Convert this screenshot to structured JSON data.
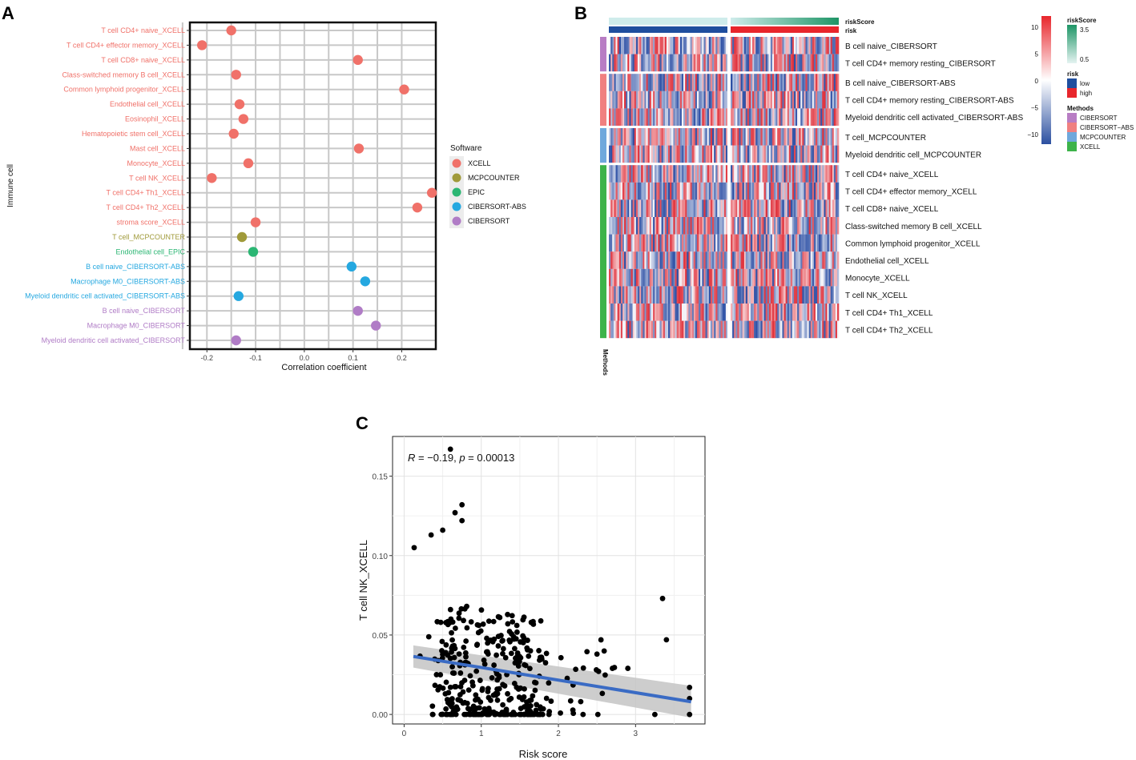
{
  "panels": {
    "a": "A",
    "b": "B",
    "c": "C"
  },
  "chart_data": [
    {
      "type": "scatter",
      "panel": "A",
      "title": "",
      "xlabel": "Correlation coefficient",
      "ylabel": "Immune cell",
      "xlim": [
        -0.235,
        0.27
      ],
      "xticks": [
        -0.2,
        -0.1,
        0.0,
        0.1,
        0.2
      ],
      "xtick_labels": [
        "-0.2",
        "-0.1",
        "0.0",
        "0.1",
        "0.2"
      ],
      "grid": true,
      "legend": {
        "title": "Software",
        "position": "right",
        "entries": [
          {
            "label": "XCELL",
            "color": "#F07169"
          },
          {
            "label": "MCPCOUNTER",
            "color": "#A09A3A"
          },
          {
            "label": "EPIC",
            "color": "#2BB673"
          },
          {
            "label": "CIBERSORT-ABS",
            "color": "#25A8E0"
          },
          {
            "label": "CIBERSORT",
            "color": "#B07CC6"
          }
        ]
      },
      "points": [
        {
          "cell": "T cell CD4+ naive_XCELL",
          "value": -0.15,
          "software": 0
        },
        {
          "cell": "T cell CD4+ effector memory_XCELL",
          "value": -0.21,
          "software": 0
        },
        {
          "cell": "T cell CD8+ naive_XCELL",
          "value": 0.11,
          "software": 0
        },
        {
          "cell": "Class-switched memory B cell_XCELL",
          "value": -0.14,
          "software": 0
        },
        {
          "cell": "Common lymphoid progenitor_XCELL",
          "value": 0.205,
          "software": 0
        },
        {
          "cell": "Endothelial cell_XCELL",
          "value": -0.133,
          "software": 0
        },
        {
          "cell": "Eosinophil_XCELL",
          "value": -0.125,
          "software": 0
        },
        {
          "cell": "Hematopoietic stem cell_XCELL",
          "value": -0.145,
          "software": 0
        },
        {
          "cell": "Mast cell_XCELL",
          "value": 0.112,
          "software": 0
        },
        {
          "cell": "Monocyte_XCELL",
          "value": -0.115,
          "software": 0
        },
        {
          "cell": "T cell NK_XCELL",
          "value": -0.19,
          "software": 0
        },
        {
          "cell": "T cell CD4+ Th1_XCELL",
          "value": 0.262,
          "software": 0
        },
        {
          "cell": "T cell CD4+ Th2_XCELL",
          "value": 0.232,
          "software": 0
        },
        {
          "cell": "stroma score_XCELL",
          "value": -0.1,
          "software": 0
        },
        {
          "cell": "T cell_MCPCOUNTER",
          "value": -0.128,
          "software": 1
        },
        {
          "cell": "Endothelial cell_EPIC",
          "value": -0.105,
          "software": 2
        },
        {
          "cell": "B cell naive_CIBERSORT-ABS",
          "value": 0.097,
          "software": 3
        },
        {
          "cell": "Macrophage M0_CIBERSORT-ABS",
          "value": 0.125,
          "software": 3
        },
        {
          "cell": "Myeloid dendritic cell activated_CIBERSORT-ABS",
          "value": -0.135,
          "software": 3
        },
        {
          "cell": "B cell naive_CIBERSORT",
          "value": 0.11,
          "software": 4
        },
        {
          "cell": "Macrophage M0_CIBERSORT",
          "value": 0.147,
          "software": 4
        },
        {
          "cell": "Myeloid dendritic cell activated_CIBERSORT",
          "value": -0.14,
          "software": 4
        }
      ]
    },
    {
      "type": "heatmap",
      "panel": "B",
      "top_annotations": [
        "riskScore",
        "risk"
      ],
      "side_annotation_label": "Methods",
      "rows": [
        {
          "label": "B cell naive_CIBERSORT",
          "method": 0
        },
        {
          "label": "T cell CD4+ memory resting_CIBERSORT",
          "method": 0
        },
        {
          "label": "B cell naive_CIBERSORT-ABS",
          "method": 1
        },
        {
          "label": "T cell CD4+ memory resting_CIBERSORT-ABS",
          "method": 1
        },
        {
          "label": "Myeloid dendritic cell activated_CIBERSORT-ABS",
          "method": 1
        },
        {
          "label": "T cell_MCPCOUNTER",
          "method": 2
        },
        {
          "label": "Myeloid dendritic cell_MCPCOUNTER",
          "method": 2
        },
        {
          "label": "T cell CD4+ naive_XCELL",
          "method": 3
        },
        {
          "label": "T cell CD4+ effector memory_XCELL",
          "method": 3
        },
        {
          "label": "T cell CD8+ naive_XCELL",
          "method": 3
        },
        {
          "label": "Class-switched memory B cell_XCELL",
          "method": 3
        },
        {
          "label": "Common lymphoid progenitor_XCELL",
          "method": 3
        },
        {
          "label": "Endothelial cell_XCELL",
          "method": 3
        },
        {
          "label": "Monocyte_XCELL",
          "method": 3
        },
        {
          "label": "T cell NK_XCELL",
          "method": 3
        },
        {
          "label": "T cell CD4+ Th1_XCELL",
          "method": 3
        },
        {
          "label": "T cell CD4+ Th2_XCELL",
          "method": 3
        }
      ],
      "groups": [
        [
          0,
          1
        ],
        [
          2,
          3,
          4
        ],
        [
          5,
          6
        ],
        [
          7,
          8,
          9,
          10,
          11,
          12,
          13,
          14,
          15,
          16
        ]
      ],
      "n_columns_low": 70,
      "n_columns_high": 65,
      "colorbar": {
        "ticks": [
          10,
          5,
          0,
          -5,
          -10
        ],
        "tick_labels": [
          "10",
          "5",
          "0",
          "−5",
          "−10"
        ],
        "high_color": "#E8262C",
        "mid_color": "#FFFFFF",
        "low_color": "#2B4FA0"
      },
      "legend": {
        "riskScore": {
          "title": "riskScore",
          "labels": [
            "3.5",
            "0.5"
          ],
          "high_color": "#1E9566",
          "low_color": "#E4F3F1"
        },
        "risk": {
          "title": "risk",
          "labels": [
            "low",
            "high"
          ],
          "colors": [
            "#1F4E9E",
            "#E8262C"
          ]
        },
        "methods": {
          "title": "Methods",
          "labels": [
            "CIBERSORT",
            "CIBERSORT−ABS",
            "MCPCOUNTER",
            "XCELL"
          ],
          "colors": [
            "#B87DC4",
            "#F08080",
            "#6FA8DC",
            "#3DB34A"
          ]
        }
      }
    },
    {
      "type": "scatter",
      "panel": "C",
      "title": "",
      "xlabel": "Risk score",
      "ylabel": "T cell NK_XCELL",
      "xlim": [
        -0.15,
        3.9
      ],
      "ylim": [
        -0.006,
        0.175
      ],
      "xticks": [
        0,
        1,
        2,
        3
      ],
      "xtick_labels": [
        "0",
        "1",
        "2",
        "3"
      ],
      "yticks": [
        0.0,
        0.05,
        0.1,
        0.15
      ],
      "ytick_labels": [
        "0.00",
        "0.05",
        "0.10",
        "0.15"
      ],
      "grid": true,
      "annotation": {
        "R_label": "R",
        "R_text": " = −0.19, ",
        "p_label": "p",
        "p_text": " = 0.00013"
      },
      "regression": {
        "x0": 0.12,
        "y0": 0.0365,
        "x1": 3.72,
        "y1": 0.008,
        "band_half_width_start": 0.007,
        "band_half_width_end": 0.01
      },
      "highlighted_points": [
        [
          0.6,
          0.167
        ],
        [
          0.75,
          0.132
        ],
        [
          0.75,
          0.122
        ],
        [
          0.66,
          0.127
        ],
        [
          0.13,
          0.105
        ],
        [
          0.35,
          0.113
        ],
        [
          0.5,
          0.116
        ],
        [
          3.35,
          0.073
        ],
        [
          3.4,
          0.047
        ],
        [
          2.5,
          0.038
        ],
        [
          2.7,
          0.029
        ],
        [
          2.9,
          0.029
        ],
        [
          3.7,
          0.017
        ],
        [
          3.7,
          0.01
        ],
        [
          3.7,
          0.0
        ],
        [
          3.25,
          0.0
        ]
      ],
      "n_random_points": 360
    }
  ]
}
